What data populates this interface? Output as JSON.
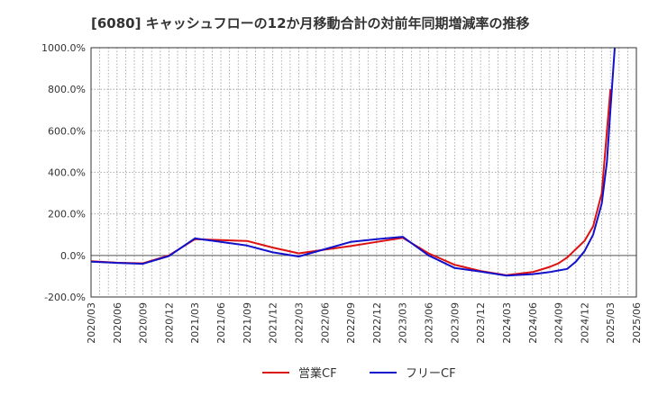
{
  "chart_data": {
    "type": "line",
    "title": "[6080]  キャッシュフローの12か月移動合計の対前年同期増減率の推移",
    "xlabel": "",
    "ylabel": "",
    "ylim": [
      -200,
      1000
    ],
    "yticks": [
      -200,
      0,
      200,
      400,
      600,
      800,
      1000
    ],
    "ytick_labels": [
      "-200.0%",
      "0.0%",
      "200.0%",
      "400.0%",
      "600.0%",
      "800.0%",
      "1000.0%"
    ],
    "x_months": [
      "2020/03",
      "2020/04",
      "2020/05",
      "2020/06",
      "2020/07",
      "2020/08",
      "2020/09",
      "2020/10",
      "2020/11",
      "2020/12",
      "2021/01",
      "2021/02",
      "2021/03",
      "2021/04",
      "2021/05",
      "2021/06",
      "2021/07",
      "2021/08",
      "2021/09",
      "2021/10",
      "2021/11",
      "2021/12",
      "2022/01",
      "2022/02",
      "2022/03",
      "2022/04",
      "2022/05",
      "2022/06",
      "2022/07",
      "2022/08",
      "2022/09",
      "2022/10",
      "2022/11",
      "2022/12",
      "2023/01",
      "2023/02",
      "2023/03",
      "2023/04",
      "2023/05",
      "2023/06",
      "2023/07",
      "2023/08",
      "2023/09",
      "2023/10",
      "2023/11",
      "2023/12",
      "2024/01",
      "2024/02",
      "2024/03",
      "2024/04",
      "2024/05",
      "2024/06",
      "2024/07",
      "2024/08",
      "2024/09",
      "2024/10",
      "2024/11",
      "2024/12",
      "2025/01",
      "2025/02",
      "2025/03",
      "2025/04",
      "2025/05",
      "2025/06"
    ],
    "xtick_labels": [
      "2020/03",
      "2020/06",
      "2020/09",
      "2020/12",
      "2021/03",
      "2021/06",
      "2021/09",
      "2021/12",
      "2022/03",
      "2022/06",
      "2022/09",
      "2022/12",
      "2023/03",
      "2023/06",
      "2023/09",
      "2023/12",
      "2024/03",
      "2024/06",
      "2024/09",
      "2024/12",
      "2025/03",
      "2025/06"
    ],
    "grid": true,
    "legend_position": "bottom-center",
    "series": [
      {
        "name": "営業CF",
        "color": "#dd1111",
        "x": [
          0,
          3,
          6,
          9,
          12,
          15,
          18,
          21,
          24,
          27,
          30,
          33,
          36,
          39,
          42,
          45,
          48,
          51,
          52,
          53,
          54,
          55,
          56,
          57,
          58,
          59,
          60
        ],
        "values": [
          -28,
          -35,
          -38,
          0,
          78,
          74,
          70,
          38,
          10,
          28,
          45,
          65,
          85,
          10,
          -45,
          -75,
          -95,
          -80,
          -68,
          -55,
          -38,
          -10,
          30,
          70,
          140,
          300,
          800
        ]
      },
      {
        "name": "フリーCF",
        "color": "#1111cc",
        "x": [
          0,
          3,
          6,
          9,
          12,
          15,
          18,
          21,
          24,
          27,
          30,
          33,
          36,
          39,
          42,
          45,
          48,
          51,
          52,
          53,
          54,
          55,
          56,
          57,
          58,
          59,
          59.6,
          60,
          60.5
        ],
        "values": [
          -30,
          -36,
          -40,
          -3,
          82,
          65,
          48,
          15,
          -5,
          30,
          65,
          78,
          90,
          0,
          -60,
          -78,
          -97,
          -90,
          -85,
          -80,
          -72,
          -65,
          -30,
          20,
          100,
          250,
          450,
          700,
          1000
        ]
      }
    ]
  }
}
